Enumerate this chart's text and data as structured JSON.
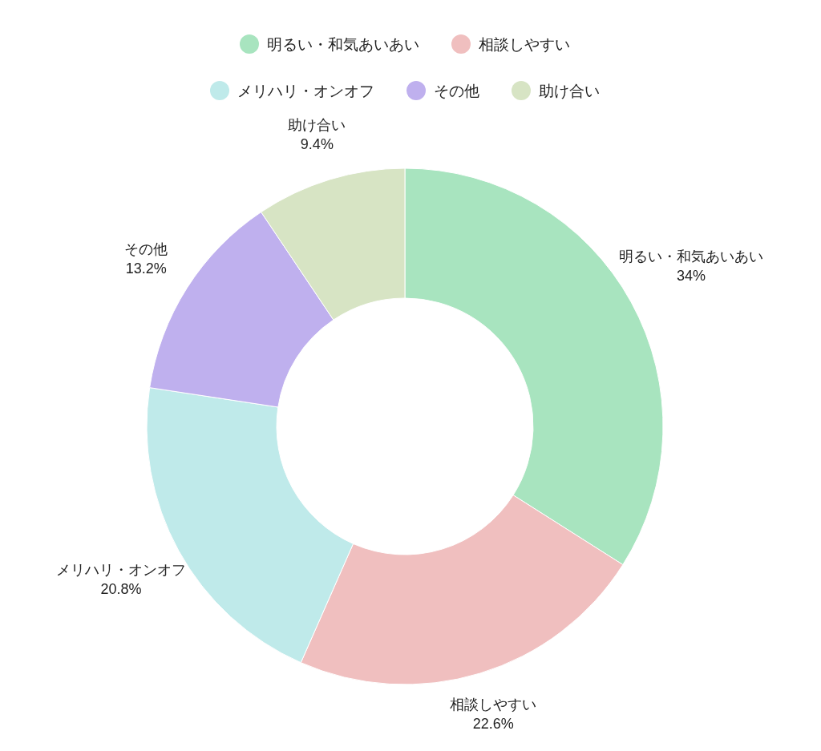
{
  "chart_data": {
    "type": "donut",
    "categories": [
      "明るい・和気あいあい",
      "相談しやすい",
      "メリハリ・オンオフ",
      "その他",
      "助け合い"
    ],
    "values": [
      34,
      22.6,
      20.8,
      13.2,
      9.4
    ],
    "colors": [
      "#a8e4bf",
      "#f0bfbf",
      "#bfeaea",
      "#bfb0ee",
      "#d7e4c4"
    ],
    "value_labels": [
      "34%",
      "22.6%",
      "20.8%",
      "13.2%",
      "9.4%"
    ],
    "legend": "top"
  }
}
